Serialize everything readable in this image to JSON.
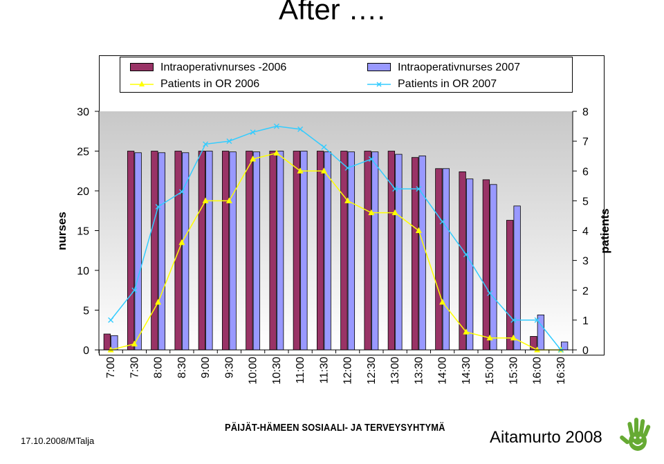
{
  "slide": {
    "title": "After ….",
    "footer_date": "17.10.2008/MTalja",
    "footer_org": "PÄIJÄT-HÄMEEN SOSIAALI- JA TERVEYSYHTYMÄ",
    "footer_event": "Aitamurto 2008"
  },
  "chart_data": {
    "type": "bar",
    "categories": [
      "7:00",
      "7:30",
      "8:00",
      "8:30",
      "9:00",
      "9:30",
      "10:00",
      "10:30",
      "11:00",
      "11:30",
      "12:00",
      "12:30",
      "13:00",
      "13:30",
      "14:00",
      "14:30",
      "15:00",
      "15:30",
      "16:00",
      "16:30"
    ],
    "series": [
      {
        "name": "Intraoperativnurses -2006",
        "type": "bar",
        "axis": "left",
        "color": "#993366",
        "values": [
          2,
          25,
          25,
          25,
          25,
          25,
          25,
          25,
          25,
          25,
          25,
          25,
          25,
          24.2,
          22.8,
          22.4,
          21.4,
          16.3,
          1.7,
          0
        ]
      },
      {
        "name": "Intraoperativnurses 2007",
        "type": "bar",
        "axis": "left",
        "color": "#9999ff",
        "values": [
          1.8,
          24.8,
          24.8,
          24.8,
          25,
          24.9,
          24.9,
          25,
          25,
          24.9,
          24.9,
          24.9,
          24.6,
          24.4,
          22.8,
          21.5,
          20.8,
          18.1,
          4.4,
          1
        ]
      },
      {
        "name": "Patients in OR 2006",
        "type": "line",
        "axis": "right",
        "color": "#ffff00",
        "marker": "triangle",
        "values": [
          0,
          0.2,
          1.6,
          3.6,
          5,
          5,
          6.4,
          6.6,
          6,
          6,
          5,
          4.6,
          4.6,
          4,
          1.6,
          0.6,
          0.4,
          0.4,
          0,
          0
        ]
      },
      {
        "name": "Patients in OR 2007",
        "type": "line",
        "axis": "right",
        "color": "#33ccff",
        "marker": "x",
        "values": [
          1,
          2,
          4.8,
          5.3,
          6.9,
          7,
          7.3,
          7.5,
          7.4,
          6.8,
          6.1,
          6.4,
          5.4,
          5.4,
          4.3,
          3.2,
          1.9,
          1,
          1,
          0
        ]
      }
    ],
    "ylabel": "nurses",
    "ylabel_right": "patients",
    "ylim": [
      0,
      30
    ],
    "ylim_right": [
      0,
      8
    ],
    "yticks": [
      0,
      5,
      10,
      15,
      20,
      25,
      30
    ],
    "yticks_right": [
      0,
      1,
      2,
      3,
      4,
      5,
      6,
      7,
      8
    ],
    "plot_background": "#c0c0c0",
    "legend_position": "top"
  }
}
